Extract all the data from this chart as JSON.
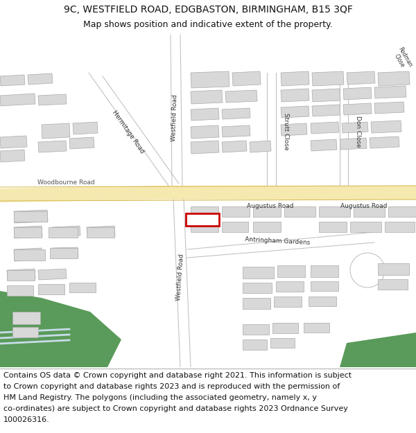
{
  "title_line1": "9C, WESTFIELD ROAD, EDGBASTON, BIRMINGHAM, B15 3QF",
  "title_line2": "Map shows position and indicative extent of the property.",
  "footer_text": "Contains OS data © Crown copyright and database right 2021. This information is subject to Crown copyright and database rights 2023 and is reproduced with the permission of HM Land Registry. The polygons (including the associated geometry, namely x, y co-ordinates) are subject to Crown copyright and database rights 2023 Ordnance Survey 100026316.",
  "bg_color": "#ffffff",
  "map_bg": "#ffffff",
  "road_yellow": "#f5e9b0",
  "road_yellow_border": "#d4b84a",
  "road_white": "#ffffff",
  "building_fill": "#d8d8d8",
  "building_edge": "#aaaaaa",
  "highlight_fill": "#ffffff",
  "highlight_edge": "#cc0000",
  "green_fill": "#5a9a5a",
  "text_color": "#333333",
  "title_fontsize": 10,
  "subtitle_fontsize": 9,
  "footer_fontsize": 8
}
